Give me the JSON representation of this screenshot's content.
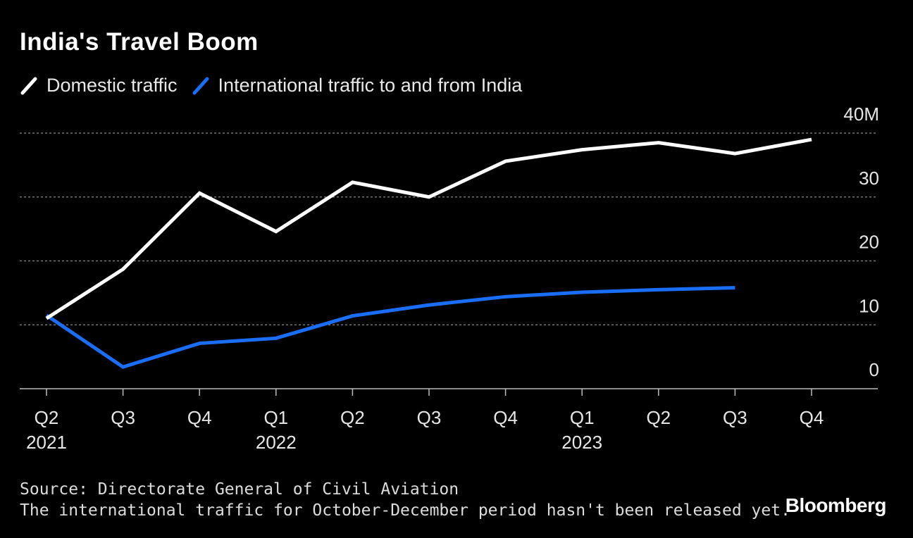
{
  "title": "India's Travel Boom",
  "legend": [
    {
      "label": "Domestic traffic",
      "color": "#ffffff"
    },
    {
      "label": "International traffic to and from India",
      "color": "#1a6ef5"
    }
  ],
  "source": "Source: Directorate General of Civil Aviation",
  "note": "The international traffic for October-December period hasn't been released yet.",
  "brand": "Bloomberg",
  "chart_data": {
    "type": "line",
    "title": "India's Travel Boom",
    "categories": [
      "Q2 2021",
      "Q3",
      "Q4",
      "Q1 2022",
      "Q2",
      "Q3",
      "Q4",
      "Q1 2023",
      "Q2",
      "Q3",
      "Q4"
    ],
    "x_ticks": [
      {
        "q": "Q2",
        "year": "2021"
      },
      {
        "q": "Q3",
        "year": ""
      },
      {
        "q": "Q4",
        "year": ""
      },
      {
        "q": "Q1",
        "year": "2022"
      },
      {
        "q": "Q2",
        "year": ""
      },
      {
        "q": "Q3",
        "year": ""
      },
      {
        "q": "Q4",
        "year": ""
      },
      {
        "q": "Q1",
        "year": "2023"
      },
      {
        "q": "Q2",
        "year": ""
      },
      {
        "q": "Q3",
        "year": ""
      },
      {
        "q": "Q4",
        "year": ""
      }
    ],
    "y_ticks": [
      "0",
      "10",
      "20",
      "30",
      "40M"
    ],
    "ylim": [
      0,
      40
    ],
    "ylabel": "",
    "xlabel": "",
    "grid": true,
    "series": [
      {
        "name": "Domestic traffic",
        "color": "#ffffff",
        "values": [
          11,
          18.7,
          30.6,
          24.6,
          32.3,
          30,
          35.6,
          37.4,
          38.5,
          36.8,
          39
        ]
      },
      {
        "name": "International traffic to and from India",
        "color": "#1a6ef5",
        "values": [
          11.5,
          3.4,
          7.1,
          7.9,
          11.4,
          13.1,
          14.4,
          15.1,
          15.5,
          15.8,
          null
        ]
      }
    ]
  }
}
